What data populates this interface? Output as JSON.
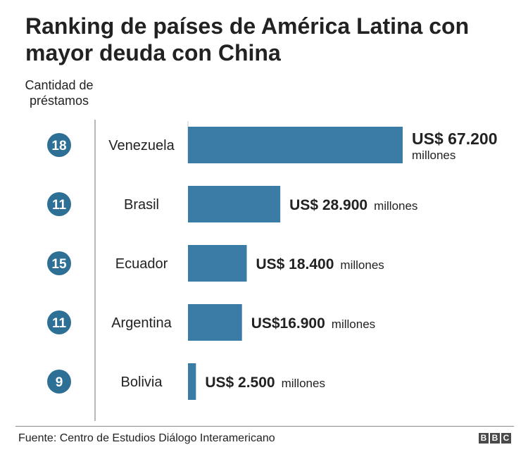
{
  "title": "Ranking de países de América Latina con mayor deuda con China",
  "column_label": "Cantidad de préstamos",
  "source": "Fuente: Centro de Estudios Diálogo Interamericano",
  "logo": [
    "B",
    "B",
    "C"
  ],
  "colors": {
    "bar": "#3a7ca5",
    "circle": "#2e6f96",
    "text": "#222222",
    "axis": "#8a8a8a"
  },
  "chart_data": {
    "type": "bar",
    "orientation": "horizontal",
    "categories": [
      "Venezuela",
      "Brasil",
      "Ecuador",
      "Argentina",
      "Bolivia"
    ],
    "values": [
      67200,
      28900,
      18400,
      16900,
      2500
    ],
    "loan_counts": [
      18,
      11,
      15,
      11,
      9
    ],
    "value_labels": [
      {
        "amount": "US$ 67.200",
        "unit": "millones"
      },
      {
        "amount": "US$ 28.900",
        "unit": "millones"
      },
      {
        "amount": "US$ 18.400",
        "unit": "millones"
      },
      {
        "amount": "US$16.900",
        "unit": "millones"
      },
      {
        "amount": "US$ 2.500",
        "unit": "millones"
      }
    ],
    "xlim": [
      0,
      67200
    ]
  }
}
